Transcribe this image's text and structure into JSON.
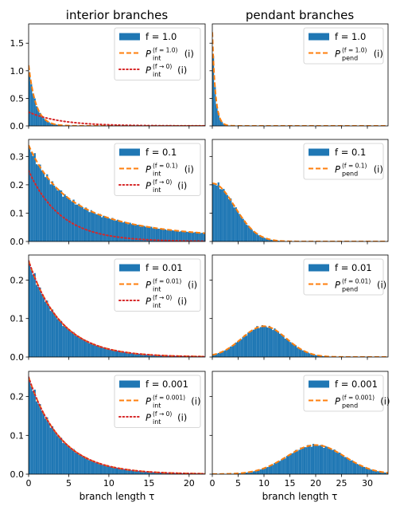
{
  "columns": [
    {
      "title": "interior branches",
      "xlabel": "branch length τ"
    },
    {
      "title": "pendant branches",
      "xlabel": "branch length τ"
    }
  ],
  "colors": {
    "histogram": "#1f77b4",
    "fitted": "#ff7f0e",
    "limit": "#d62728"
  },
  "chart_data": [
    {
      "type": "bar",
      "row": 0,
      "col": 0,
      "xlim": [
        0,
        22
      ],
      "ylim": [
        0,
        1.85
      ],
      "xticks": [
        0,
        5,
        10,
        15,
        20
      ],
      "yticks": [
        0.0,
        0.5,
        1.0,
        1.5
      ],
      "tick_labels_x": false,
      "series": [
        {
          "name": "f = 1.0",
          "kind": "histogram",
          "dist": {
            "family": "exp",
            "rate": 1.1,
            "amp": 1.1
          },
          "bin_width": 0.22
        },
        {
          "name": "P_int^(f=1.0)(i)",
          "kind": "dashed",
          "dist": {
            "family": "exp",
            "rate": 1.1,
            "amp": 1.1
          }
        },
        {
          "name": "P_int^(f→0)(i)",
          "kind": "dotted",
          "dist": {
            "family": "exp",
            "rate": 0.25,
            "amp": 0.25
          }
        }
      ],
      "legend": [
        {
          "kind": "patch",
          "label": "f = 1.0"
        },
        {
          "kind": "dashed",
          "main": "P",
          "sup": "(f = 1.0)",
          "sub": "int",
          "tail": "(i)"
        },
        {
          "kind": "dotted",
          "main": "P",
          "sup": "(f → 0)",
          "sub": "int",
          "tail": "(i)"
        }
      ],
      "legend_position": "upper right"
    },
    {
      "type": "bar",
      "row": 0,
      "col": 1,
      "xlim": [
        0,
        34
      ],
      "ylim": [
        0,
        1.85
      ],
      "xticks": [
        0,
        5,
        10,
        15,
        20,
        25,
        30
      ],
      "yticks": [],
      "tick_labels_x": false,
      "series": [
        {
          "name": "f = 1.0",
          "kind": "histogram",
          "dist": {
            "family": "exp",
            "rate": 1.7,
            "amp": 1.7
          },
          "bin_width": 0.34
        },
        {
          "name": "P_pend^(f=1.0)(i)",
          "kind": "dashed",
          "dist": {
            "family": "exp",
            "rate": 1.7,
            "amp": 1.7
          }
        }
      ],
      "legend": [
        {
          "kind": "patch",
          "label": "f = 1.0"
        },
        {
          "kind": "dashed",
          "main": "P",
          "sup": "(f = 1.0)",
          "sub": "pend",
          "tail": "(i)"
        }
      ],
      "legend_position": "upper right"
    },
    {
      "type": "bar",
      "row": 1,
      "col": 0,
      "xlim": [
        0,
        22
      ],
      "ylim": [
        0,
        0.36
      ],
      "xticks": [
        0,
        5,
        10,
        15,
        20
      ],
      "yticks": [
        0.0,
        0.1,
        0.2,
        0.3
      ],
      "tick_labels_x": false,
      "series": [
        {
          "name": "f = 0.1",
          "kind": "histogram",
          "dist": {
            "family": "powerdecay",
            "amp": 0.34,
            "a": 0.19,
            "p": 2.5
          },
          "bin_width": 0.22
        },
        {
          "name": "P_int^(f=0.1)(i)",
          "kind": "dashed",
          "dist": {
            "family": "powerdecay",
            "amp": 0.34,
            "a": 0.19,
            "p": 2.5
          }
        },
        {
          "name": "P_int^(f→0)(i)",
          "kind": "dotted",
          "dist": {
            "family": "exp",
            "rate": 0.25,
            "amp": 0.25
          }
        }
      ],
      "legend": [
        {
          "kind": "patch",
          "label": "f = 0.1"
        },
        {
          "kind": "dashed",
          "main": "P",
          "sup": "(f = 0.1)",
          "sub": "int",
          "tail": "(i)"
        },
        {
          "kind": "dotted",
          "main": "P",
          "sup": "(f → 0)",
          "sub": "int",
          "tail": "(i)"
        }
      ],
      "legend_position": "upper right"
    },
    {
      "type": "bar",
      "row": 1,
      "col": 1,
      "xlim": [
        0,
        34
      ],
      "ylim": [
        0,
        0.36
      ],
      "xticks": [
        0,
        5,
        10,
        15,
        20,
        25,
        30
      ],
      "yticks": [],
      "tick_labels_x": false,
      "series": [
        {
          "name": "f = 0.1",
          "kind": "histogram",
          "dist": {
            "family": "halfgauss",
            "amp": 0.205,
            "sigma": 4.3
          },
          "bin_width": 0.34
        },
        {
          "name": "P_pend^(f=0.1)(i)",
          "kind": "dashed",
          "dist": {
            "family": "halfgauss",
            "amp": 0.205,
            "sigma": 4.3
          }
        }
      ],
      "legend": [
        {
          "kind": "patch",
          "label": "f = 0.1"
        },
        {
          "kind": "dashed",
          "main": "P",
          "sup": "(f = 0.1)",
          "sub": "pend",
          "tail": "(i)"
        }
      ],
      "legend_position": "upper right"
    },
    {
      "type": "bar",
      "row": 2,
      "col": 0,
      "xlim": [
        0,
        22
      ],
      "ylim": [
        0,
        0.265
      ],
      "xticks": [
        0,
        5,
        10,
        15,
        20
      ],
      "yticks": [
        0.0,
        0.1,
        0.2
      ],
      "tick_labels_x": false,
      "series": [
        {
          "name": "f = 0.01",
          "kind": "histogram",
          "dist": {
            "family": "exp",
            "rate": 0.25,
            "amp": 0.25
          },
          "bin_width": 0.22
        },
        {
          "name": "P_int^(f=0.01)(i)",
          "kind": "dashed",
          "dist": {
            "family": "exp",
            "rate": 0.25,
            "amp": 0.25
          }
        },
        {
          "name": "P_int^(f→0)(i)",
          "kind": "dotted",
          "dist": {
            "family": "exp",
            "rate": 0.25,
            "amp": 0.25
          }
        }
      ],
      "legend": [
        {
          "kind": "patch",
          "label": "f = 0.01"
        },
        {
          "kind": "dashed",
          "main": "P",
          "sup": "(f = 0.01)",
          "sub": "int",
          "tail": "(i)"
        },
        {
          "kind": "dotted",
          "main": "P",
          "sup": "(f → 0)",
          "sub": "int",
          "tail": "(i)"
        }
      ],
      "legend_position": "upper right"
    },
    {
      "type": "bar",
      "row": 2,
      "col": 1,
      "xlim": [
        0,
        34
      ],
      "ylim": [
        0,
        0.265
      ],
      "xticks": [
        0,
        5,
        10,
        15,
        20,
        25,
        30
      ],
      "yticks": [],
      "tick_labels_x": false,
      "series": [
        {
          "name": "f = 0.01",
          "kind": "histogram",
          "dist": {
            "family": "gauss",
            "amp": 0.08,
            "mu": 10,
            "sigma": 4.3
          },
          "bin_width": 0.34
        },
        {
          "name": "P_pend^(f=0.01)(i)",
          "kind": "dashed",
          "dist": {
            "family": "gauss",
            "amp": 0.08,
            "mu": 10,
            "sigma": 4.3
          }
        }
      ],
      "legend": [
        {
          "kind": "patch",
          "label": "f = 0.01"
        },
        {
          "kind": "dashed",
          "main": "P",
          "sup": "(f = 0.01)",
          "sub": "pend",
          "tail": "(i)"
        }
      ],
      "legend_position": "upper right"
    },
    {
      "type": "bar",
      "row": 3,
      "col": 0,
      "xlim": [
        0,
        22
      ],
      "ylim": [
        0,
        0.265
      ],
      "xticks": [
        0,
        5,
        10,
        15,
        20
      ],
      "yticks": [
        0.0,
        0.1,
        0.2
      ],
      "tick_labels_x": true,
      "series": [
        {
          "name": "f = 0.001",
          "kind": "histogram",
          "dist": {
            "family": "exp",
            "rate": 0.25,
            "amp": 0.25
          },
          "bin_width": 0.22
        },
        {
          "name": "P_int^(f=0.001)(i)",
          "kind": "dashed",
          "dist": {
            "family": "exp",
            "rate": 0.25,
            "amp": 0.25
          }
        },
        {
          "name": "P_int^(f→0)(i)",
          "kind": "dotted",
          "dist": {
            "family": "exp",
            "rate": 0.25,
            "amp": 0.25
          }
        }
      ],
      "legend": [
        {
          "kind": "patch",
          "label": "f = 0.001"
        },
        {
          "kind": "dashed",
          "main": "P",
          "sup": "(f = 0.001)",
          "sub": "int",
          "tail": "(i)"
        },
        {
          "kind": "dotted",
          "main": "P",
          "sup": "(f → 0)",
          "sub": "int",
          "tail": "(i)"
        }
      ],
      "legend_position": "upper right"
    },
    {
      "type": "bar",
      "row": 3,
      "col": 1,
      "xlim": [
        0,
        34
      ],
      "ylim": [
        0,
        0.265
      ],
      "xticks": [
        0,
        5,
        10,
        15,
        20,
        25,
        30
      ],
      "yticks": [],
      "tick_labels_x": true,
      "series": [
        {
          "name": "f = 0.001",
          "kind": "histogram",
          "dist": {
            "family": "gauss",
            "amp": 0.075,
            "mu": 20,
            "sigma": 5.6
          },
          "bin_width": 0.34
        },
        {
          "name": "P_pend^(f=0.001)(i)",
          "kind": "dashed",
          "dist": {
            "family": "gauss",
            "amp": 0.075,
            "mu": 20,
            "sigma": 5.6
          }
        }
      ],
      "legend": [
        {
          "kind": "patch",
          "label": "f = 0.001"
        },
        {
          "kind": "dashed",
          "main": "P",
          "sup": "(f = 0.001)",
          "sub": "pend",
          "tail": "(i)"
        }
      ],
      "legend_position": "upper right"
    }
  ]
}
